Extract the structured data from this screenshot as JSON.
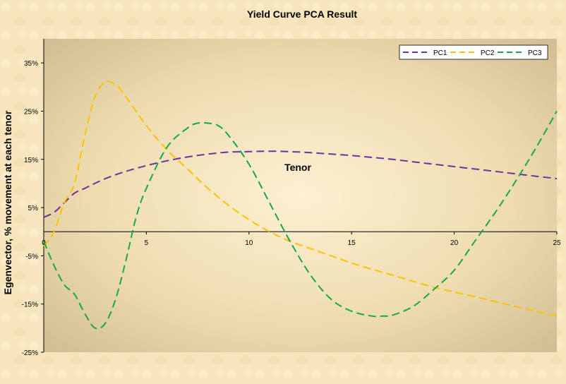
{
  "chart_data": {
    "type": "line",
    "title": "Yield Curve PCA Result",
    "xlabel": "Tenor",
    "ylabel": "Egenvector, % movement at each tenor",
    "xlim": [
      0,
      25
    ],
    "ylim": [
      -25,
      40
    ],
    "x_ticks": [
      0,
      5,
      10,
      15,
      20,
      25
    ],
    "y_ticks": [
      -25,
      -15,
      -5,
      5,
      15,
      25,
      35
    ],
    "y_tick_labels": [
      "-25%",
      "-15%",
      "-5%",
      "5%",
      "15%",
      "25%",
      "35%"
    ],
    "grid": false,
    "legend": "top-right",
    "series": [
      {
        "name": "PC1",
        "color": "#7030a0",
        "x": [
          0,
          0.5,
          1,
          1.5,
          2,
          3,
          4,
          5,
          6,
          7,
          8,
          9,
          10,
          11,
          12,
          13,
          14,
          15,
          16,
          17,
          18,
          19,
          20,
          21,
          22,
          23,
          24,
          25
        ],
        "y": [
          3,
          4,
          6,
          8,
          9,
          11,
          12.5,
          13.7,
          14.7,
          15.5,
          16.1,
          16.5,
          16.6,
          16.7,
          16.6,
          16.4,
          16.1,
          15.8,
          15.4,
          15,
          14.5,
          14,
          13.5,
          13,
          12.5,
          12,
          11.5,
          11
        ]
      },
      {
        "name": "PC2",
        "color": "#ffc000",
        "x": [
          0,
          0.5,
          1,
          1.5,
          2,
          2.5,
          3,
          3.5,
          4,
          5,
          6,
          7,
          8,
          9,
          10,
          11,
          12,
          13,
          14,
          15,
          16,
          17,
          18,
          19,
          20,
          21,
          22,
          23,
          24,
          25
        ],
        "y": [
          -3,
          0,
          6,
          10,
          20,
          28,
          31,
          30.5,
          28,
          22,
          17,
          13,
          9,
          5.5,
          2.5,
          0,
          -2,
          -3.5,
          -5,
          -6.5,
          -7.8,
          -9,
          -10.3,
          -11.5,
          -12.5,
          -13.5,
          -14.5,
          -15.5,
          -16.5,
          -17.5
        ]
      },
      {
        "name": "PC3",
        "color": "#1aa64a",
        "x": [
          0,
          0.5,
          1,
          1.5,
          2,
          2.5,
          3,
          3.5,
          4,
          4.5,
          5,
          6,
          7,
          7.5,
          8,
          8.5,
          9,
          10,
          11,
          12,
          13,
          14,
          15,
          16,
          16.5,
          17,
          18,
          19,
          20,
          21,
          22,
          23,
          24,
          25
        ],
        "y": [
          -2,
          -7,
          -11,
          -13,
          -17,
          -20,
          -19,
          -14,
          -6,
          3,
          9,
          17.5,
          21.5,
          22.5,
          22.5,
          22,
          20,
          14,
          6,
          -2,
          -9,
          -14,
          -16.5,
          -17.5,
          -17.5,
          -17.3,
          -15.5,
          -12,
          -8,
          -2,
          4,
          10.5,
          17.5,
          25
        ]
      }
    ]
  }
}
